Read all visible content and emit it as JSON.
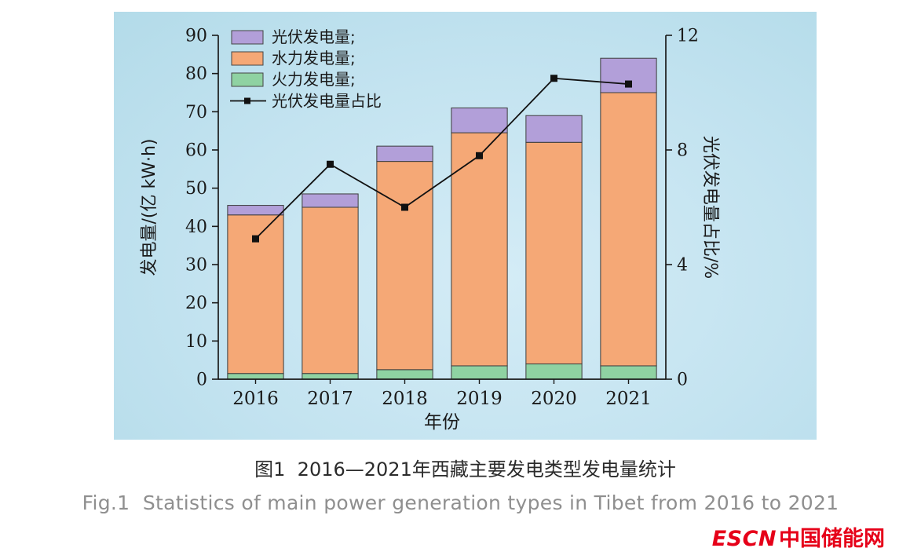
{
  "figure": {
    "caption_zh": "图1  2016—2021年西藏主要发电类型发电量统计",
    "caption_en": "Fig.1  Statistics of main power generation types in Tibet from 2016 to 2021",
    "logo_en": "ESCN",
    "logo_zh": "中国储能网",
    "logo_color": "#e60019"
  },
  "chart_data": {
    "type": "bar",
    "subtype": "stacked-bar-with-line",
    "categories": [
      "2016",
      "2017",
      "2018",
      "2019",
      "2020",
      "2021"
    ],
    "series": [
      {
        "name": "火力发电量;",
        "type": "bar",
        "color": "#8fd2a2",
        "axis": "left",
        "values": [
          1.5,
          1.5,
          2.5,
          3.5,
          4.0,
          3.5
        ]
      },
      {
        "name": "水力发电量;",
        "type": "bar",
        "color": "#f5a876",
        "axis": "left",
        "values": [
          41.5,
          43.5,
          54.5,
          61.0,
          58.0,
          71.5
        ]
      },
      {
        "name": "光伏发电量;",
        "type": "bar",
        "color": "#b29fd9",
        "axis": "left",
        "values": [
          2.5,
          3.5,
          4.0,
          6.5,
          7.0,
          9.0
        ]
      },
      {
        "name": "光伏发电量占比",
        "type": "line",
        "color": "#111111",
        "axis": "right",
        "values": [
          4.9,
          7.5,
          6.0,
          7.8,
          10.5,
          10.3
        ]
      }
    ],
    "legend_order": [
      2,
      1,
      0,
      3
    ],
    "legend_position": "top-left",
    "xlabel": "年份",
    "ylabel_left": "发电量/(亿 kW·h)",
    "ylabel_right": "光伏发电量占比/%",
    "ylim_left": [
      0,
      90
    ],
    "ylim_right": [
      0,
      12
    ],
    "yticks_left": [
      0,
      10,
      20,
      30,
      40,
      50,
      60,
      70,
      80,
      90
    ],
    "yticks_right": [
      0,
      4,
      8,
      12
    ],
    "plot_background": "#c0e1ef",
    "grid": false
  }
}
